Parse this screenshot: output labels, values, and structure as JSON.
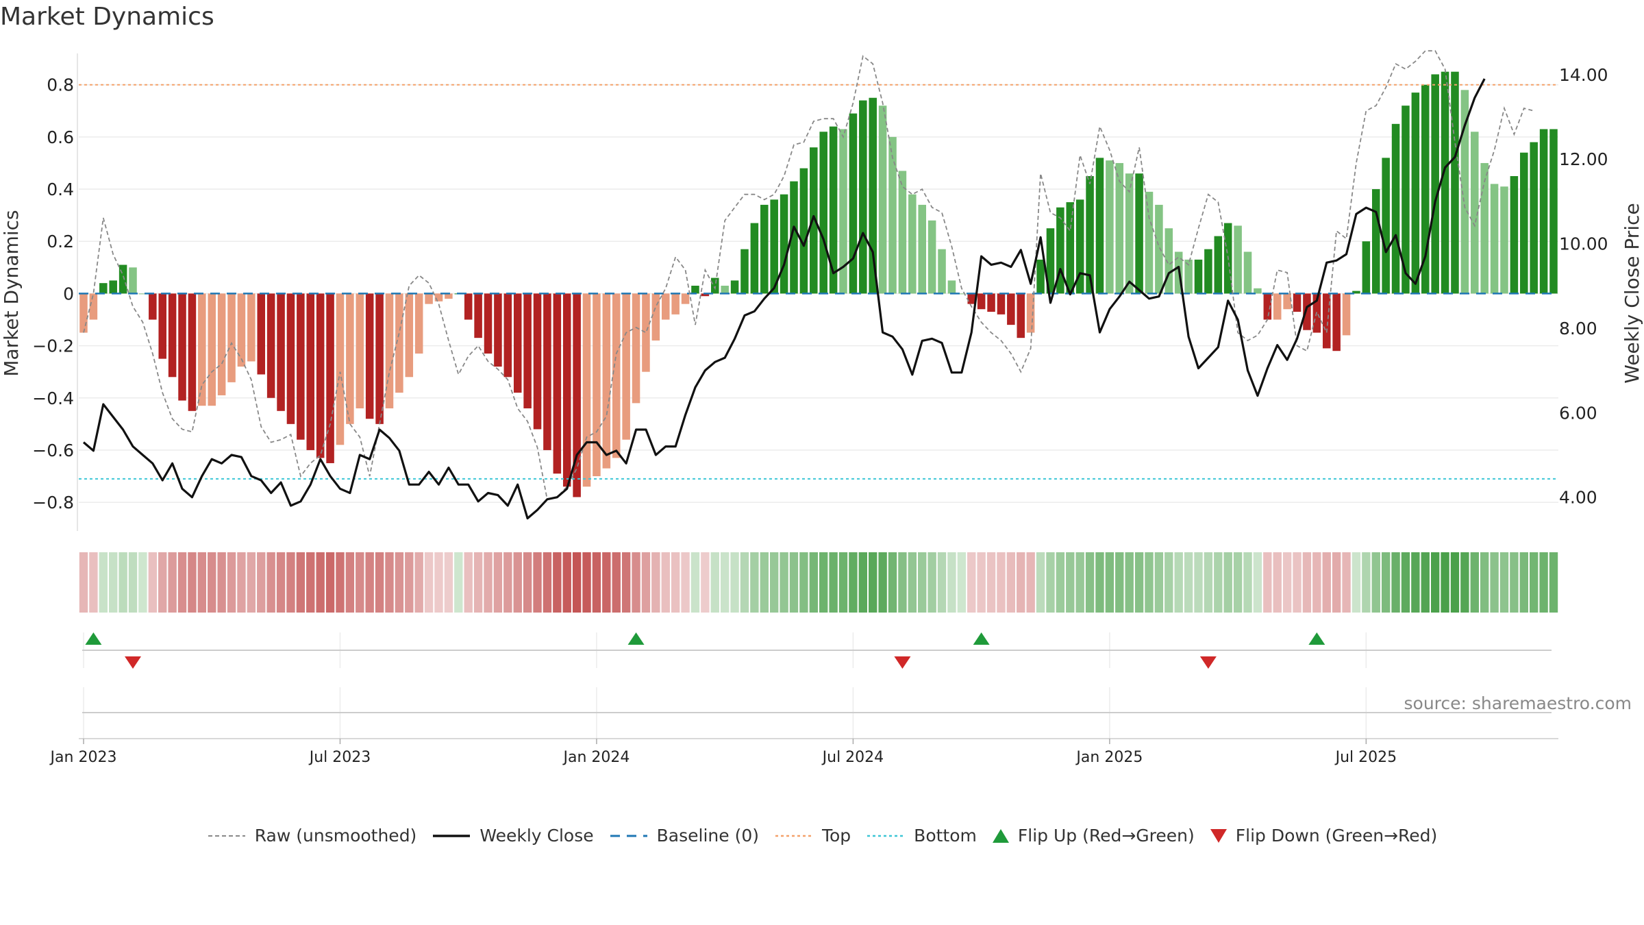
{
  "chart_data": {
    "type": "bar",
    "title": "Market Dynamics",
    "ylabel_left": "Market Dynamics",
    "ylabel_right": "Weekly Close Price",
    "ylim_left": [
      -0.91,
      0.92
    ],
    "ylim_right": [
      3.2,
      14.5
    ],
    "left_ticks": [
      -0.8,
      -0.6,
      -0.4,
      -0.2,
      0,
      0.2,
      0.4,
      0.6,
      0.8
    ],
    "left_tick_labels": [
      "−0.8",
      "−0.6",
      "−0.4",
      "−0.2",
      "0",
      "0.2",
      "0.4",
      "0.6",
      "0.8"
    ],
    "right_ticks": [
      4,
      6,
      8,
      10,
      12,
      14
    ],
    "right_tick_labels": [
      "4.00",
      "6.00",
      "8.00",
      "10.00",
      "12.00",
      "14.00"
    ],
    "x_tick_labels": [
      "Jan 2023",
      "Jul 2023",
      "Jan 2024",
      "Jul 2024",
      "Jan 2025",
      "Jul 2025"
    ],
    "x_tick_weeks": [
      0,
      26,
      52,
      78,
      104,
      130
    ],
    "top_line": 0.8,
    "bottom_line": -0.71,
    "baseline": 0,
    "smoothed": [
      -0.15,
      -0.1,
      0.04,
      0.05,
      0.11,
      0.1,
      0,
      -0.1,
      -0.25,
      -0.32,
      -0.41,
      -0.45,
      -0.43,
      -0.43,
      -0.39,
      -0.34,
      -0.28,
      -0.26,
      -0.31,
      -0.4,
      -0.45,
      -0.5,
      -0.56,
      -0.6,
      -0.63,
      -0.65,
      -0.58,
      -0.5,
      -0.44,
      -0.48,
      -0.5,
      -0.44,
      -0.38,
      -0.32,
      -0.23,
      -0.04,
      -0.03,
      -0.02,
      0,
      -0.1,
      -0.17,
      -0.23,
      -0.28,
      -0.32,
      -0.38,
      -0.44,
      -0.52,
      -0.6,
      -0.69,
      -0.74,
      -0.78,
      -0.74,
      -0.7,
      -0.67,
      -0.63,
      -0.56,
      -0.42,
      -0.3,
      -0.18,
      -0.1,
      -0.08,
      -0.04,
      0.03,
      -0.01,
      0.06,
      0.03,
      0.05,
      0.17,
      0.27,
      0.34,
      0.36,
      0.38,
      0.43,
      0.48,
      0.56,
      0.62,
      0.64,
      0.63,
      0.69,
      0.74,
      0.75,
      0.72,
      0.6,
      0.47,
      0.38,
      0.34,
      0.28,
      0.17,
      0.05,
      0,
      -0.04,
      -0.06,
      -0.07,
      -0.08,
      -0.12,
      -0.17,
      -0.15,
      0.13,
      0.25,
      0.33,
      0.35,
      0.36,
      0.45,
      0.52,
      0.51,
      0.5,
      0.46,
      0.46,
      0.39,
      0.34,
      0.25,
      0.16,
      0.13,
      0.13,
      0.17,
      0.22,
      0.27,
      0.26,
      0.16,
      0.02,
      -0.1,
      -0.1,
      -0.06,
      -0.07,
      -0.14,
      -0.15,
      -0.21,
      -0.22,
      -0.16,
      0.01,
      0.2,
      0.4,
      0.52,
      0.65,
      0.72,
      0.77,
      0.8,
      0.84,
      0.85,
      0.85,
      0.78,
      0.62,
      0.5,
      0.42,
      0.41,
      0.45,
      0.54,
      0.58,
      0.63,
      0.63
    ],
    "raw": [
      -0.15,
      0,
      0.29,
      0.15,
      0.07,
      -0.05,
      -0.11,
      -0.23,
      -0.38,
      -0.48,
      -0.52,
      -0.53,
      -0.35,
      -0.3,
      -0.27,
      -0.19,
      -0.25,
      -0.33,
      -0.51,
      -0.57,
      -0.56,
      -0.54,
      -0.7,
      -0.65,
      -0.62,
      -0.5,
      -0.3,
      -0.5,
      -0.55,
      -0.7,
      -0.5,
      -0.3,
      -0.15,
      0.03,
      0.07,
      0.04,
      -0.04,
      -0.18,
      -0.31,
      -0.24,
      -0.2,
      -0.26,
      -0.29,
      -0.33,
      -0.44,
      -0.49,
      -0.59,
      -0.79,
      -0.78,
      -0.74,
      -0.67,
      -0.55,
      -0.53,
      -0.47,
      -0.23,
      -0.15,
      -0.13,
      -0.15,
      -0.05,
      0.02,
      0.14,
      0.09,
      -0.12,
      0.09,
      0.02,
      0.28,
      0.33,
      0.38,
      0.38,
      0.36,
      0.38,
      0.45,
      0.57,
      0.58,
      0.66,
      0.67,
      0.67,
      0.6,
      0.73,
      0.91,
      0.88,
      0.73,
      0.52,
      0.41,
      0.38,
      0.4,
      0.33,
      0.31,
      0.18,
      0.02,
      -0.05,
      -0.11,
      -0.15,
      -0.18,
      -0.23,
      -0.3,
      -0.21,
      0.46,
      0.31,
      0.29,
      0.24,
      0.53,
      0.42,
      0.64,
      0.55,
      0.43,
      0.39,
      0.56,
      0.29,
      0.18,
      0.11,
      0.14,
      0.11,
      0.25,
      0.38,
      0.35,
      0.14,
      -0.15,
      -0.18,
      -0.16,
      -0.1,
      0.09,
      0.08,
      -0.2,
      -0.22,
      -0.07,
      -0.15,
      0.24,
      0.21,
      0.5,
      0.7,
      0.72,
      0.79,
      0.88,
      0.86,
      0.89,
      0.93,
      0.93,
      0.86,
      0.58,
      0.33,
      0.26,
      0.43,
      0.55,
      0.71,
      0.61,
      0.71,
      0.7
    ],
    "close": [
      5.3,
      5.1,
      6.2,
      5.9,
      5.6,
      5.2,
      5.0,
      4.8,
      4.4,
      4.8,
      4.2,
      4.0,
      4.5,
      4.9,
      4.8,
      5.0,
      4.95,
      4.5,
      4.4,
      4.1,
      4.35,
      3.8,
      3.9,
      4.3,
      4.9,
      4.5,
      4.2,
      4.1,
      5.0,
      4.9,
      5.6,
      5.4,
      5.1,
      4.3,
      4.3,
      4.6,
      4.3,
      4.7,
      4.3,
      4.3,
      3.9,
      4.1,
      4.05,
      3.8,
      4.3,
      3.5,
      3.7,
      3.95,
      4.0,
      4.2,
      5.0,
      5.3,
      5.3,
      5.0,
      5.1,
      4.8,
      5.6,
      5.6,
      5.0,
      5.2,
      5.2,
      5.95,
      6.6,
      7.0,
      7.2,
      7.3,
      7.75,
      8.3,
      8.4,
      8.7,
      8.95,
      9.5,
      10.4,
      9.95,
      10.65,
      10.1,
      9.3,
      9.45,
      9.65,
      10.25,
      9.8,
      7.9,
      7.8,
      7.5,
      6.9,
      7.7,
      7.75,
      7.65,
      6.95,
      6.95,
      7.9,
      9.7,
      9.5,
      9.55,
      9.45,
      9.85,
      9.05,
      10.15,
      8.6,
      9.4,
      8.8,
      9.3,
      9.25,
      7.9,
      8.45,
      8.75,
      9.1,
      8.9,
      8.7,
      8.75,
      9.3,
      9.45,
      7.8,
      7.05,
      7.3,
      7.55,
      8.65,
      8.2,
      7.0,
      6.4,
      7.05,
      7.6,
      7.25,
      7.75,
      8.5,
      8.65,
      9.55,
      9.6,
      9.75,
      10.7,
      10.85,
      10.75,
      9.8,
      10.2,
      9.3,
      9.05,
      9.7,
      11.0,
      11.8,
      12.05,
      12.8,
      13.45,
      13.9
    ],
    "flip_up_weeks": [
      1,
      56,
      91,
      125
    ],
    "flip_down_weeks": [
      5,
      83,
      114
    ],
    "legend": [
      "Raw (unsmoothed)",
      "Weekly Close",
      "Baseline (0)",
      "Top",
      "Bottom",
      "Flip Up (Red→Green)",
      "Flip Down (Green→Red)"
    ],
    "colors": {
      "green_strong": "#228b22",
      "green_light": "#84c484",
      "red_strong": "#b22222",
      "red_light": "#e89c7e",
      "close_line": "#111111",
      "raw_line": "#888888",
      "baseline": "#1f77b4",
      "top_line": "#f4a16a",
      "bottom_line": "#3dc6d6",
      "flip_up": "#1f9a3a",
      "flip_down": "#d02828"
    }
  },
  "source": "source: sharemaestro.com"
}
